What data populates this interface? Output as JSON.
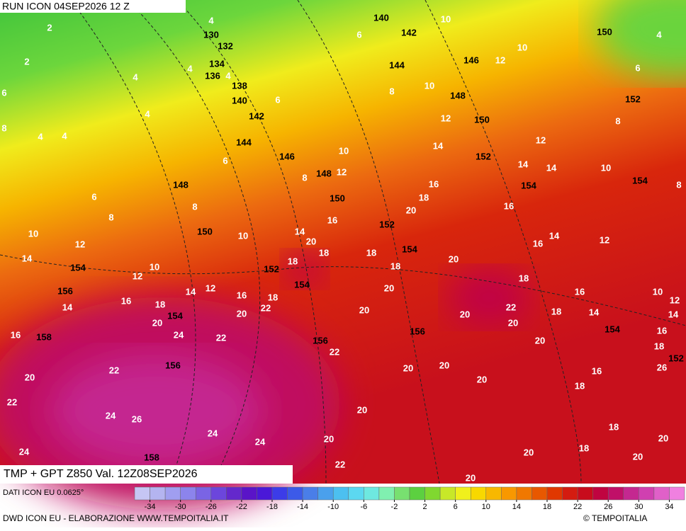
{
  "header": {
    "run": "RUN ICON 04SEP2026 12 Z",
    "field": "TMP + GPT Z850 Val. 12Z08SEP2026"
  },
  "footer": {
    "data_source": "DATI ICON EU 0.0625°",
    "credit": "DWD ICON EU - ELABORAZIONE WWW.TEMPOITALIA.IT",
    "copyright": "© TEMPOITALIA"
  },
  "colorbar": {
    "range": [
      -36,
      36
    ],
    "ticks": [
      -34,
      -30,
      -26,
      -22,
      -18,
      -14,
      -10,
      -6,
      -2,
      2,
      6,
      10,
      14,
      18,
      22,
      26,
      30,
      34
    ],
    "colors": [
      "#c6c6f4",
      "#b4b4f0",
      "#a09ef0",
      "#8c84ec",
      "#7a64e4",
      "#6c46dc",
      "#6428cc",
      "#5a14c8",
      "#4a18d8",
      "#3c3ce8",
      "#3c5ae8",
      "#4a7ee8",
      "#4aa0ec",
      "#4cc0f0",
      "#5cd8f0",
      "#6ee8e0",
      "#80f0b0",
      "#78e070",
      "#5cd040",
      "#80d830",
      "#c8e828",
      "#f0f01c",
      "#f8d800",
      "#f8b800",
      "#f89800",
      "#f07800",
      "#e85800",
      "#e03800",
      "#d41c10",
      "#c80c1c",
      "#c00440",
      "#c01068",
      "#c42890",
      "#d040b0",
      "#e060c8",
      "#f080e0"
    ]
  },
  "map": {
    "geopotential_labels": [
      140,
      142,
      130,
      132,
      134,
      136,
      138,
      140,
      144,
      146,
      148,
      150,
      152,
      142,
      150,
      144,
      146,
      152,
      148,
      148,
      154,
      154,
      150,
      152,
      150,
      154,
      154,
      152,
      154,
      156,
      154,
      154,
      156,
      158,
      156,
      152,
      156,
      158
    ],
    "temperature_labels": [
      2,
      2,
      4,
      4,
      4,
      4,
      6,
      8,
      4,
      4,
      4,
      6,
      6,
      8,
      10,
      10,
      10,
      12,
      12,
      6,
      14,
      10,
      12,
      8,
      4,
      6,
      8,
      12,
      14,
      14,
      10,
      8,
      16,
      18,
      6,
      8,
      8,
      16,
      20,
      10,
      14,
      16,
      20,
      18,
      18,
      14,
      12,
      16,
      10,
      12,
      14,
      10,
      12,
      18,
      20,
      18,
      18,
      14,
      12,
      16,
      18,
      20,
      16,
      10,
      12,
      14,
      16,
      18,
      22,
      20,
      20,
      20,
      22,
      18,
      14,
      14,
      20,
      24,
      22,
      20,
      16,
      16,
      18,
      20,
      22,
      16,
      22,
      20,
      20,
      20,
      20,
      26,
      18,
      22,
      24,
      26,
      20,
      24,
      24,
      20,
      18,
      20,
      20,
      24,
      18,
      20,
      22,
      20
    ]
  }
}
